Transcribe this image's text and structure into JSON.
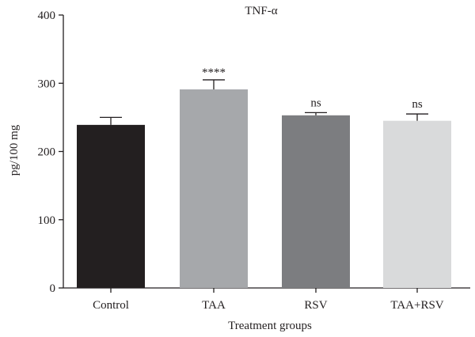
{
  "chart_data": {
    "type": "bar",
    "title": "TNF-α",
    "xlabel": "Treatment groups",
    "ylabel": "pg/100 mg",
    "ylim": [
      0,
      400
    ],
    "yticks": [
      0,
      100,
      200,
      300,
      400
    ],
    "grid": false,
    "categories": [
      "Control",
      "TAA",
      "RSV",
      "TAA+RSV"
    ],
    "values": [
      239,
      291,
      253,
      245
    ],
    "errors": [
      11,
      14,
      4,
      10
    ],
    "annotations": [
      "",
      "****",
      "ns",
      "ns"
    ],
    "colors": [
      "#231f20",
      "#a6a8ab",
      "#7c7d80",
      "#d9dadb"
    ]
  }
}
